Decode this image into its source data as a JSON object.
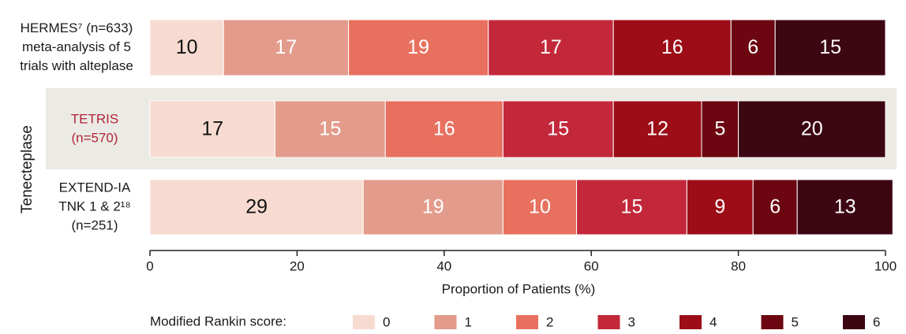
{
  "chart_data": {
    "type": "bar",
    "orientation": "horizontal",
    "stacked": true,
    "categories": [
      [
        "HERMES⁷ (n=633)",
        "meta-analysis of 5",
        "trials with alteplase"
      ],
      [
        "TETRIS",
        "(n=570)"
      ],
      [
        "EXTEND-IA",
        "TNK 1 & 2¹⁸",
        "(n=251)"
      ]
    ],
    "group_label": "Tenecteplase",
    "series": [
      {
        "name": "0",
        "color": "#f7dbd1",
        "values": [
          10,
          17,
          29
        ]
      },
      {
        "name": "1",
        "color": "#e39b8b",
        "values": [
          17,
          15,
          19
        ]
      },
      {
        "name": "2",
        "color": "#e8705f",
        "values": [
          19,
          16,
          10
        ]
      },
      {
        "name": "3",
        "color": "#c3283a",
        "values": [
          17,
          15,
          15
        ]
      },
      {
        "name": "4",
        "color": "#9c0d17",
        "values": [
          16,
          12,
          9
        ]
      },
      {
        "name": "5",
        "color": "#6c0610",
        "values": [
          6,
          5,
          6
        ]
      },
      {
        "name": "6",
        "color": "#3c0613",
        "values": [
          15,
          20,
          13
        ]
      }
    ],
    "xlim": [
      0,
      100
    ],
    "xticks": [
      0,
      20,
      40,
      60,
      80,
      100
    ],
    "xlabel": "Proportion of Patients (%)",
    "legend_title": "Modified Rankin score:"
  }
}
